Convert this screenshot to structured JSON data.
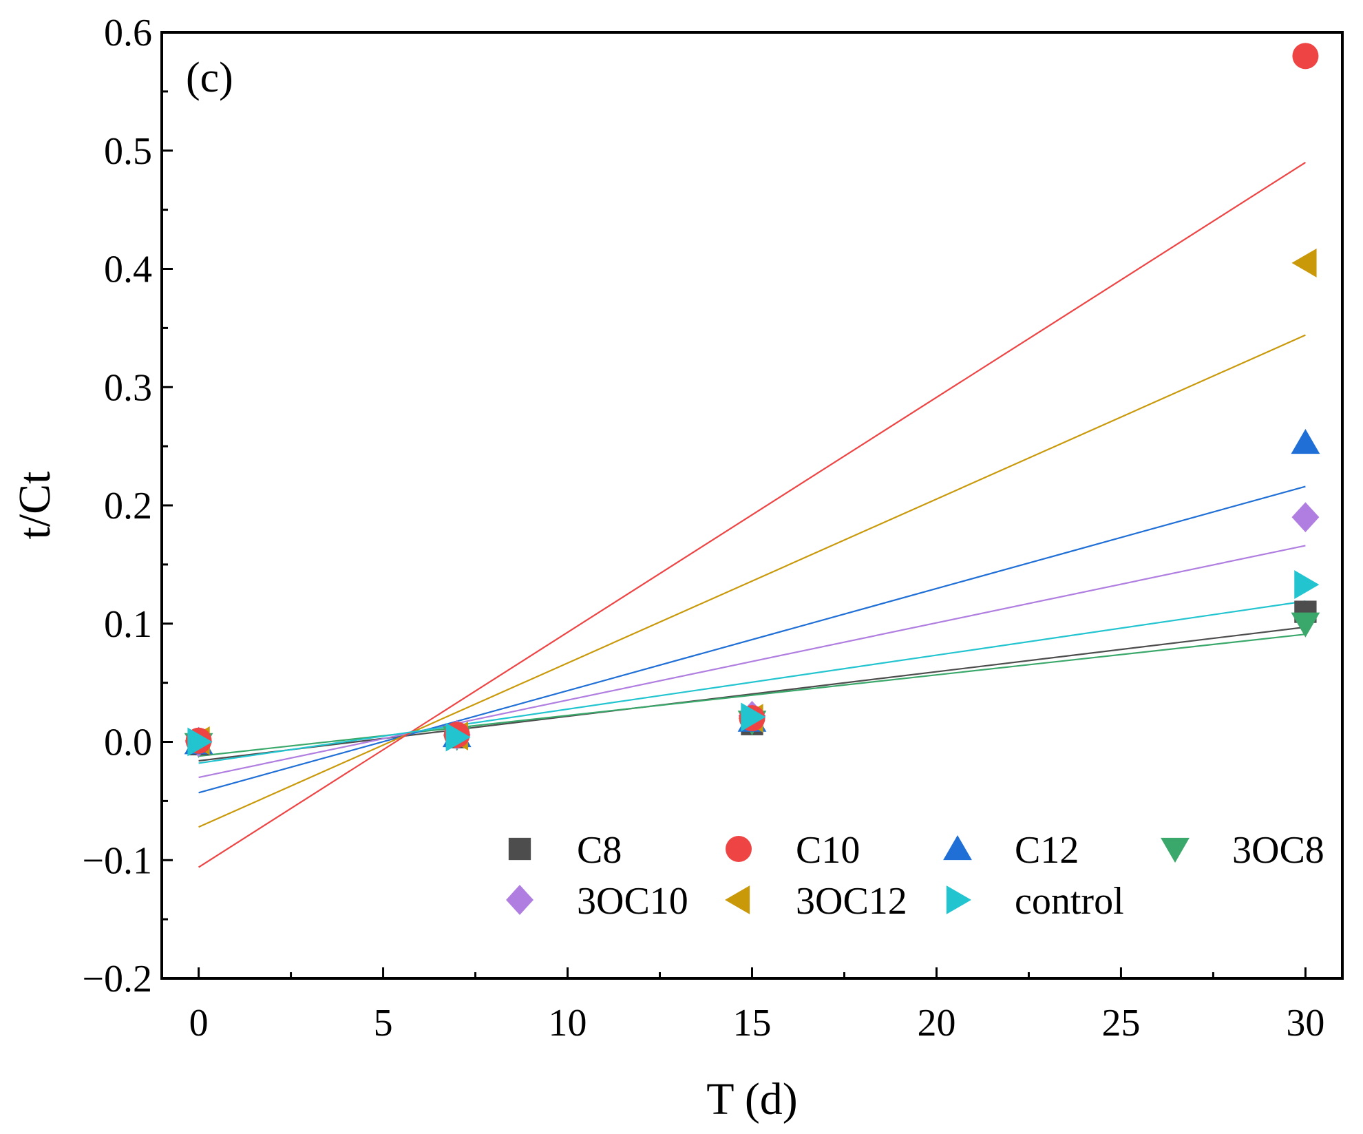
{
  "chart_data": {
    "type": "scatter",
    "panel_label": "(c)",
    "xlabel": "T (d)",
    "ylabel": "t/Ct",
    "xlim": [
      -1,
      31
    ],
    "ylim": [
      -0.2,
      0.6
    ],
    "xticks": [
      0,
      5,
      10,
      15,
      20,
      25,
      30
    ],
    "yticks": [
      -0.2,
      -0.1,
      0.0,
      0.1,
      0.2,
      0.3,
      0.4,
      0.5,
      0.6
    ],
    "ytick_labels": [
      "−0.2",
      "−0.1",
      "0.0",
      "0.1",
      "0.2",
      "0.3",
      "0.4",
      "0.5",
      "0.6"
    ],
    "xtick_labels": [
      "0",
      "5",
      "10",
      "15",
      "20",
      "25",
      "30"
    ],
    "legend_placement": "bottom-right",
    "series": [
      {
        "name": "C8",
        "marker": "square",
        "color": "#4d4d4d",
        "x": [
          0,
          7,
          15,
          30
        ],
        "y": [
          -0.002,
          0.004,
          0.015,
          0.11
        ],
        "fit": [
          -0.016,
          0.097
        ]
      },
      {
        "name": "C10",
        "marker": "circle",
        "color": "#ee4444",
        "x": [
          0,
          7,
          15,
          30
        ],
        "y": [
          0.001,
          0.006,
          0.02,
          0.58
        ],
        "fit": [
          -0.106,
          0.49
        ]
      },
      {
        "name": "C12",
        "marker": "triangle-up",
        "color": "#1f6fd6",
        "x": [
          0,
          7,
          15,
          30
        ],
        "y": [
          -0.001,
          0.005,
          0.018,
          0.253
        ],
        "fit": [
          -0.043,
          0.216
        ]
      },
      {
        "name": "3OC8",
        "marker": "triangle-down",
        "color": "#3aa86a",
        "x": [
          0,
          7,
          15,
          30
        ],
        "y": [
          -0.002,
          0.004,
          0.017,
          0.1
        ],
        "fit": [
          -0.012,
          0.091
        ]
      },
      {
        "name": "3OC10",
        "marker": "diamond",
        "color": "#b07ee0",
        "x": [
          0,
          7,
          15,
          30
        ],
        "y": [
          0.0,
          0.006,
          0.022,
          0.19
        ],
        "fit": [
          -0.03,
          0.166
        ]
      },
      {
        "name": "3OC12",
        "marker": "triangle-left",
        "color": "#c9990a",
        "x": [
          0,
          7,
          15,
          30
        ],
        "y": [
          0.001,
          0.005,
          0.02,
          0.405
        ],
        "fit": [
          -0.072,
          0.344
        ]
      },
      {
        "name": "control",
        "marker": "triangle-right",
        "color": "#22c4d0",
        "x": [
          0,
          7,
          15,
          30
        ],
        "y": [
          0.0,
          0.004,
          0.021,
          0.133
        ],
        "fit": [
          -0.018,
          0.119
        ]
      }
    ]
  }
}
